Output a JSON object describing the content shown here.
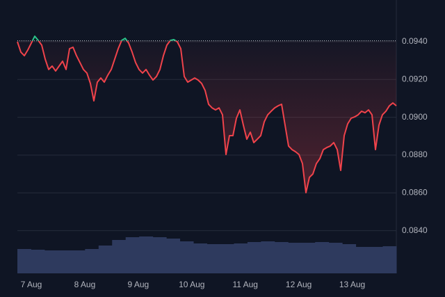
{
  "chart_data": {
    "type": "line",
    "x": [
      -0.26,
      -0.195,
      -0.13,
      -0.065,
      0,
      0.065,
      0.13,
      0.195,
      0.26,
      0.325,
      0.39,
      0.455,
      0.52,
      0.585,
      0.65,
      0.715,
      0.78,
      0.845,
      0.91,
      0.975,
      1.04,
      1.105,
      1.17,
      1.235,
      1.3,
      1.365,
      1.43,
      1.495,
      1.56,
      1.625,
      1.69,
      1.755,
      1.82,
      1.885,
      1.95,
      2.015,
      2.08,
      2.145,
      2.21,
      2.275,
      2.34,
      2.405,
      2.47,
      2.535,
      2.6,
      2.665,
      2.73,
      2.795,
      2.86,
      2.925,
      2.99,
      3.055,
      3.12,
      3.185,
      3.25,
      3.315,
      3.38,
      3.445,
      3.51,
      3.575,
      3.64,
      3.705,
      3.77,
      3.835,
      3.9,
      3.965,
      4.03,
      4.095,
      4.16,
      4.225,
      4.29,
      4.355,
      4.42,
      4.485,
      4.55,
      4.615,
      4.68,
      4.745,
      4.81,
      4.875,
      4.94,
      5.005,
      5.07,
      5.135,
      5.2,
      5.265,
      5.33,
      5.395,
      5.46,
      5.525,
      5.59,
      5.655,
      5.72,
      5.785,
      5.85,
      5.915,
      5.98,
      6.045,
      6.11,
      6.175,
      6.24,
      6.305,
      6.37,
      6.435,
      6.5,
      6.565,
      6.63,
      6.695,
      6.76,
      6.825
    ],
    "series": [
      {
        "color": "#f0434b",
        "color_above": "#2bc48a",
        "values": [
          0.094,
          0.09345,
          0.09326,
          0.09356,
          0.09393,
          0.09429,
          0.09407,
          0.09382,
          0.09308,
          0.09253,
          0.09271,
          0.09245,
          0.09271,
          0.09297,
          0.09253,
          0.09363,
          0.09371,
          0.09326,
          0.0929,
          0.09253,
          0.09234,
          0.09179,
          0.09087,
          0.09186,
          0.09208,
          0.09186,
          0.09223,
          0.09253,
          0.09308,
          0.09363,
          0.09407,
          0.09418,
          0.09393,
          0.09345,
          0.0929,
          0.09253,
          0.09234,
          0.09253,
          0.09223,
          0.09197,
          0.09216,
          0.09253,
          0.09326,
          0.09382,
          0.09407,
          0.09411,
          0.094,
          0.09363,
          0.09216,
          0.09186,
          0.09197,
          0.09208,
          0.09197,
          0.09179,
          0.09142,
          0.09069,
          0.0905,
          0.09039,
          0.0905,
          0.09013,
          0.08803,
          0.08903,
          0.08903,
          0.08995,
          0.09039,
          0.08958,
          0.08884,
          0.08921,
          0.08866,
          0.08884,
          0.08903,
          0.08976,
          0.09013,
          0.09032,
          0.0905,
          0.09061,
          0.09069,
          0.08958,
          0.08848,
          0.08829,
          0.08818,
          0.08803,
          0.08755,
          0.08601,
          0.08682,
          0.087,
          0.08755,
          0.08781,
          0.08829,
          0.0884,
          0.08848,
          0.08866,
          0.08829,
          0.08719,
          0.08903,
          0.08965,
          0.08995,
          0.09002,
          0.09013,
          0.09032,
          0.09024,
          0.09039,
          0.09013,
          0.08829,
          0.08958,
          0.09013,
          0.09032,
          0.09061,
          0.09076,
          0.09061
        ]
      }
    ],
    "baseline": 0.09405,
    "xlim": [
      -0.26,
      6.825
    ],
    "xticks": [
      {
        "value": 0,
        "label": "7 Aug"
      },
      {
        "value": 1,
        "label": "8 Aug"
      },
      {
        "value": 2,
        "label": "9 Aug"
      },
      {
        "value": 3,
        "label": "10 Aug"
      },
      {
        "value": 4,
        "label": "11 Aug"
      },
      {
        "value": 5,
        "label": "12 Aug"
      },
      {
        "value": 6,
        "label": "13 Aug"
      }
    ],
    "ylim": [
      0.08174,
      0.09584
    ],
    "yticks": [
      {
        "value": 0.084,
        "label": "0.0840"
      },
      {
        "value": 0.086,
        "label": "0.0860"
      },
      {
        "value": 0.088,
        "label": "0.0880"
      },
      {
        "value": 0.09,
        "label": "0.0900"
      },
      {
        "value": 0.092,
        "label": "0.0920"
      },
      {
        "value": 0.094,
        "label": "0.0940"
      }
    ],
    "grid": true,
    "volume": {
      "color": "#2e3a5e",
      "lim": [
        0,
        60
      ],
      "values": [
        35,
        34,
        33,
        33,
        33,
        35,
        40,
        48,
        52,
        53,
        52,
        50,
        46,
        43,
        42,
        42,
        43,
        45,
        46,
        45,
        44,
        44,
        45,
        44,
        42,
        38,
        38,
        39
      ]
    }
  }
}
